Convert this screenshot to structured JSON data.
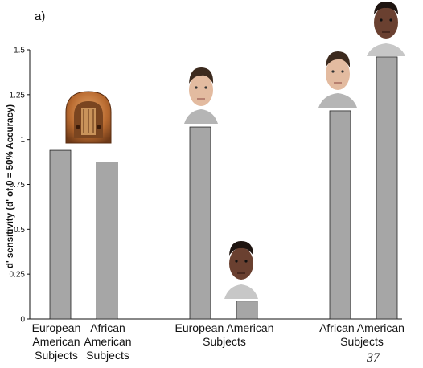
{
  "panel_label": "a)",
  "slide_number": "37",
  "x_category_labels": [
    "European\nAmerican\nSubjects",
    "African\nAmerican\nSubjects",
    "European American\nSubjects",
    "African American\nSubjects"
  ],
  "chart_data": {
    "type": "bar",
    "ylabel": "d' sensitivity (d' of 0 = 50% Accuracy)",
    "xlabel": "",
    "title": "",
    "ylim": [
      0,
      1.5
    ],
    "yticks": [
      "0",
      "0.25",
      "0.5",
      "0.75",
      "1",
      "1.25",
      "1.5"
    ],
    "grid": false,
    "groups": [
      {
        "label": "European American Subjects",
        "stimulus": "radio",
        "value": 0.94
      },
      {
        "label": "African American Subjects",
        "stimulus": "radio",
        "value": 0.875
      },
      {
        "label": "European American Subjects",
        "stimulus": "European American face",
        "value": 1.07
      },
      {
        "label": "European American Subjects",
        "stimulus": "African American face",
        "value": 0.1
      },
      {
        "label": "African American Subjects",
        "stimulus": "European American face",
        "value": 1.16
      },
      {
        "label": "African American Subjects",
        "stimulus": "African American face",
        "value": 1.46
      }
    ],
    "bar_color": "#a6a6a6"
  }
}
